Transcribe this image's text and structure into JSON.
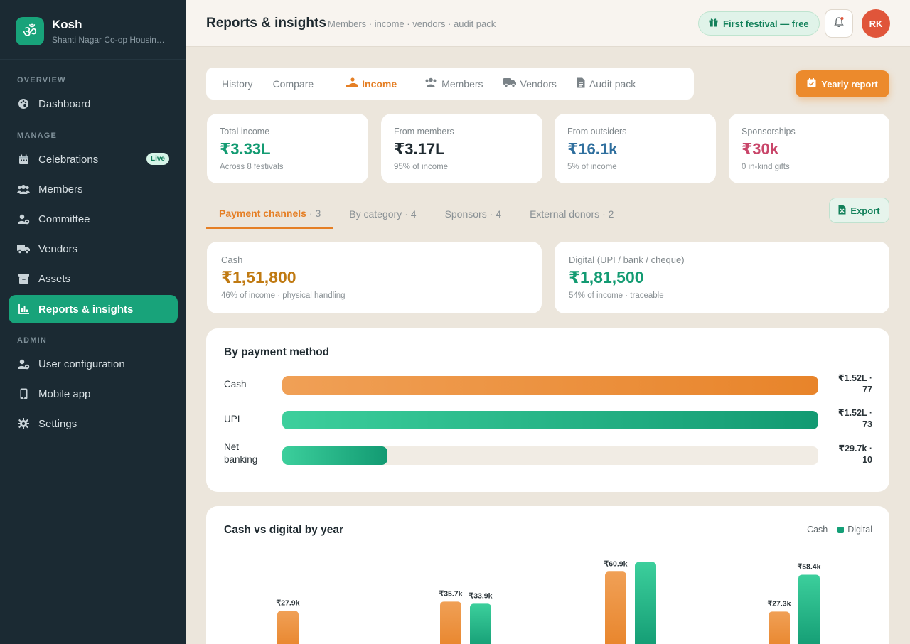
{
  "app": {
    "logo_glyph": "ॐ",
    "name": "Kosh",
    "org": "Shanti Nagar Co-op Housing Society"
  },
  "sidebar": {
    "sections": {
      "overview": "OVERVIEW",
      "manage": "MANAGE",
      "admin": "ADMIN"
    },
    "items": [
      {
        "label": "Dashboard",
        "icon": "palette-icon"
      },
      {
        "label": "Celebrations",
        "icon": "calendar-icon",
        "badge": "Live"
      },
      {
        "label": "Members",
        "icon": "users-icon"
      },
      {
        "label": "Committee",
        "icon": "user-gear-icon"
      },
      {
        "label": "Vendors",
        "icon": "truck-icon"
      },
      {
        "label": "Assets",
        "icon": "archive-icon"
      },
      {
        "label": "Reports & insights",
        "icon": "bar-chart-icon",
        "active": true
      },
      {
        "label": "User configuration",
        "icon": "user-cog-icon"
      },
      {
        "label": "Mobile app",
        "icon": "phone-icon"
      },
      {
        "label": "Settings",
        "icon": "gear-icon"
      }
    ]
  },
  "header": {
    "title": "Reports & insights",
    "subtitle": "Members · income · vendors · audit pack",
    "festival_pill": "First festival — free",
    "avatar_initials": "RK"
  },
  "tabs": [
    {
      "label": "History"
    },
    {
      "label": "Compare"
    },
    {
      "label": "Income",
      "active": true
    },
    {
      "label": "Members"
    },
    {
      "label": "Vendors"
    },
    {
      "label": "Audit pack"
    }
  ],
  "yearly_report_label": "Yearly report",
  "stats": [
    {
      "label": "Total income",
      "value": "₹3.33L",
      "note": "Across 8 festivals",
      "color": "#139b72"
    },
    {
      "label": "From members",
      "value": "₹3.17L",
      "note": "95% of income",
      "color": "#1f2a30"
    },
    {
      "label": "From outsiders",
      "value": "₹16.1k",
      "note": "5% of income",
      "color": "#2f6f9e"
    },
    {
      "label": "Sponsorships",
      "value": "₹30k",
      "note": "0 in-kind gifts",
      "color": "#c9466a"
    }
  ],
  "subtabs": [
    {
      "label": "Payment channels",
      "count": "· 3",
      "active": true
    },
    {
      "label": "By category",
      "count": "· 4"
    },
    {
      "label": "Sponsors",
      "count": "· 4"
    },
    {
      "label": "External donors",
      "count": "· 2"
    }
  ],
  "export_label": "Export",
  "channels": [
    {
      "label": "Cash",
      "value": "₹1,51,800",
      "note": "46% of income · physical handling",
      "color": "#c07a12"
    },
    {
      "label": "Digital (UPI / bank / cheque)",
      "value": "₹1,81,500",
      "note": "54% of income · traceable",
      "color": "#139b72"
    }
  ],
  "payment_method": {
    "title": "By payment method",
    "rows": [
      {
        "label": "Cash",
        "value_line1": "₹1.52L ·",
        "value_line2": "77",
        "fraction": 1.0,
        "kind": "cash"
      },
      {
        "label": "UPI",
        "value_line1": "₹1.52L ·",
        "value_line2": "73",
        "fraction": 1.0,
        "kind": "digital"
      },
      {
        "label": "Net banking",
        "value_line1": "₹29.7k ·",
        "value_line2": "10",
        "fraction": 0.196,
        "kind": "digital"
      }
    ]
  },
  "yearly_chart": {
    "title": "Cash vs digital by year",
    "legend": {
      "cash": "Cash",
      "digital": "Digital"
    },
    "colors": {
      "cash": "#ec8a2c",
      "digital": "#149f77"
    }
  },
  "chart_data": {
    "type": "bar",
    "title": "Cash vs digital by year",
    "categories": [
      "",
      "",
      "",
      ""
    ],
    "series": [
      {
        "name": "Cash",
        "values": [
          27.9,
          35.7,
          60.9,
          27.3
        ],
        "labels": [
          "₹27.9k",
          "₹35.7k",
          "₹60.9k",
          "₹27.3k"
        ]
      },
      {
        "name": "Digital",
        "values": [
          null,
          33.9,
          69.0,
          58.4
        ],
        "labels": [
          "",
          "₹33.9k",
          "",
          "₹58.4k"
        ]
      }
    ]
  }
}
